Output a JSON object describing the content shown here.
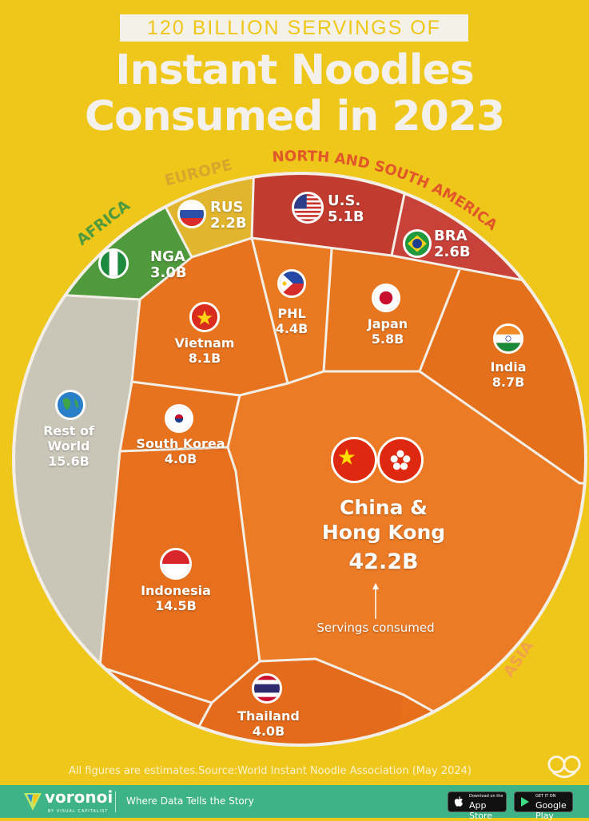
{
  "header": {
    "subtitle": "120 BILLION SERVINGS OF",
    "title_line1": "Instant Noodles",
    "title_line2": "Consumed in 2023"
  },
  "chart_data": {
    "type": "treemap",
    "layout": "voronoi circle (noodle bowl)",
    "unit": "B servings",
    "total_label": "120 BILLION SERVINGS",
    "regions": [
      {
        "name": "AFRICA",
        "color": "#4f9a3c"
      },
      {
        "name": "EUROPE",
        "color": "#e2b52e"
      },
      {
        "name": "NORTH AND SOUTH AMERICA",
        "color": "#c13b2e"
      },
      {
        "name": "ASIA",
        "color": "#e8711c"
      }
    ],
    "cells": [
      {
        "id": "nga",
        "label": "NGA",
        "value_label": "3.0B",
        "value": 3.0,
        "region": "AFRICA",
        "flag": "nigeria-flag-icon"
      },
      {
        "id": "rus",
        "label": "RUS",
        "value_label": "2.2B",
        "value": 2.2,
        "region": "EUROPE",
        "flag": "russia-flag-icon"
      },
      {
        "id": "us",
        "label": "U.S.",
        "value_label": "5.1B",
        "value": 5.1,
        "region": "NORTH AND SOUTH AMERICA",
        "flag": "usa-flag-icon"
      },
      {
        "id": "bra",
        "label": "BRA",
        "value_label": "2.6B",
        "value": 2.6,
        "region": "NORTH AND SOUTH AMERICA",
        "flag": "brazil-flag-icon"
      },
      {
        "id": "phl",
        "label": "PHL",
        "value_label": "4.4B",
        "value": 4.4,
        "region": "ASIA",
        "flag": "philippines-flag-icon"
      },
      {
        "id": "japan",
        "label": "Japan",
        "value_label": "5.8B",
        "value": 5.8,
        "region": "ASIA",
        "flag": "japan-flag-icon"
      },
      {
        "id": "india",
        "label": "India",
        "value_label": "8.7B",
        "value": 8.7,
        "region": "ASIA",
        "flag": "india-flag-icon"
      },
      {
        "id": "vietnam",
        "label": "Vietnam",
        "value_label": "8.1B",
        "value": 8.1,
        "region": "ASIA",
        "flag": "vietnam-flag-icon"
      },
      {
        "id": "korea",
        "label": "South Korea",
        "value_label": "4.0B",
        "value": 4.0,
        "region": "ASIA",
        "flag": "south-korea-flag-icon"
      },
      {
        "id": "row",
        "label": "Rest of World",
        "value_label": "15.6B",
        "value": 15.6,
        "region": "",
        "flag": "globe-icon"
      },
      {
        "id": "china",
        "label": "China & Hong Kong",
        "value_label": "42.2B",
        "value": 42.2,
        "region": "ASIA",
        "flag": "china-flag-icon"
      },
      {
        "id": "indonesia",
        "label": "Indonesia",
        "value_label": "14.5B",
        "value": 14.5,
        "region": "ASIA",
        "flag": "indonesia-flag-icon"
      },
      {
        "id": "thailand",
        "label": "Thailand",
        "value_label": "4.0B",
        "value": 4.0,
        "region": "ASIA",
        "flag": "thailand-flag-icon"
      }
    ],
    "annotation": "Servings consumed"
  },
  "labels": {
    "nga": {
      "name": "NGA",
      "value": "3.0B"
    },
    "rus": {
      "name": "RUS",
      "value": "2.2B"
    },
    "us": {
      "name": "U.S.",
      "value": "5.1B"
    },
    "bra": {
      "name": "BRA",
      "value": "2.6B"
    },
    "phl": {
      "name": "PHL",
      "value": "4.4B"
    },
    "japan": {
      "name": "Japan",
      "value": "5.8B"
    },
    "india": {
      "name": "India",
      "value": "8.7B"
    },
    "vietnam": {
      "name": "Vietnam",
      "value": "8.1B"
    },
    "korea": {
      "name": "South Korea",
      "value": "4.0B"
    },
    "row": {
      "name1": "Rest of",
      "name2": "World",
      "value": "15.6B"
    },
    "china": {
      "name1": "China &",
      "name2": "Hong Kong",
      "value": "42.2B"
    },
    "indonesia": {
      "name": "Indonesia",
      "value": "14.5B"
    },
    "thailand": {
      "name": "Thailand",
      "value": "4.0B"
    }
  },
  "regions": {
    "africa": "AFRICA",
    "europe": "EUROPE",
    "americas": "NORTH AND SOUTH AMERICA",
    "asia": "ASIA"
  },
  "annotation": "Servings consumed",
  "footnote": "All figures are estimates.Source:World Instant Noodle Association (May 2024)",
  "footer": {
    "brand": "voronoi",
    "brand_sub": "BY VISUAL CAPITALIST",
    "tagline": "Where Data Tells the Story",
    "appstore_small": "Download on the",
    "appstore_big": "App Store",
    "play_small": "GET IT ON",
    "play_big": "Google Play"
  }
}
